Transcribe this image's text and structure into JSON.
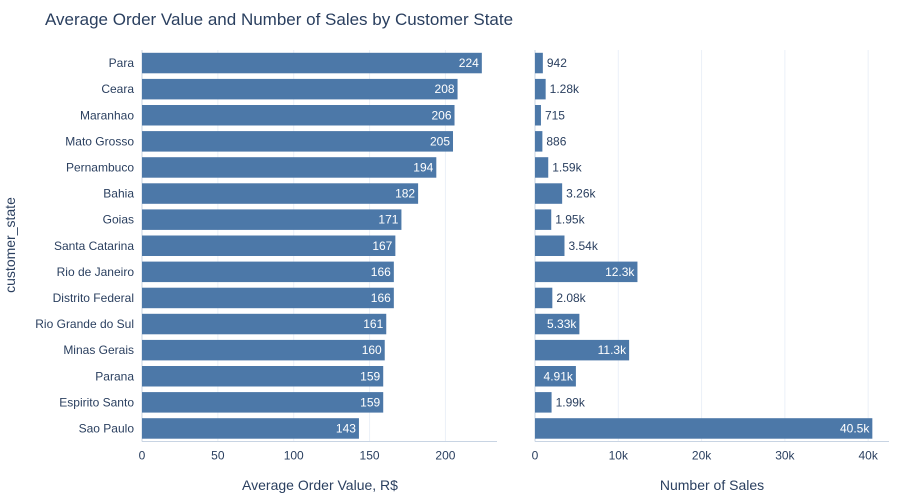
{
  "chart_data": {
    "type": "bar",
    "orientation": "horizontal",
    "title": "Average Order Value and Number of Sales by Customer State",
    "ylabel": "customer_state",
    "bar_color": "#4c78a8",
    "grid_color": "#ebf0f8",
    "axis_line_color": "#c8d4e3",
    "categories": [
      "Para",
      "Ceara",
      "Maranhao",
      "Mato Grosso",
      "Pernambuco",
      "Bahia",
      "Goias",
      "Santa Catarina",
      "Rio de Janeiro",
      "Distrito Federal",
      "Rio Grande do Sul",
      "Minas Gerais",
      "Parana",
      "Espirito Santo",
      "Sao Paulo"
    ],
    "panels": [
      {
        "name": "aov",
        "xlabel": "Average Order Value, R$",
        "xlim": [
          0,
          234
        ],
        "xticks": [
          0,
          50,
          100,
          150,
          200
        ],
        "xtick_labels": [
          "0",
          "50",
          "100",
          "150",
          "200"
        ],
        "values": [
          224,
          208,
          206,
          205,
          194,
          182,
          171,
          167,
          166,
          166,
          161,
          160,
          159,
          159,
          143
        ],
        "labels": [
          "224",
          "208",
          "206",
          "205",
          "194",
          "182",
          "171",
          "167",
          "166",
          "166",
          "161",
          "160",
          "159",
          "159",
          "143"
        ],
        "label_inside": [
          true,
          true,
          true,
          true,
          true,
          true,
          true,
          true,
          true,
          true,
          true,
          true,
          true,
          true,
          true
        ]
      },
      {
        "name": "sales",
        "xlabel": "Number of Sales",
        "xlim": [
          0,
          42500
        ],
        "xticks": [
          0,
          10000,
          20000,
          30000,
          40000
        ],
        "xtick_labels": [
          "0",
          "10k",
          "20k",
          "30k",
          "40k"
        ],
        "values": [
          942,
          1280,
          715,
          886,
          1590,
          3260,
          1950,
          3540,
          12300,
          2080,
          5330,
          11300,
          4910,
          1990,
          40500
        ],
        "labels": [
          "942",
          "1.28k",
          "715",
          "886",
          "1.59k",
          "3.26k",
          "1.95k",
          "3.54k",
          "12.3k",
          "2.08k",
          "5.33k",
          "11.3k",
          "4.91k",
          "1.99k",
          "40.5k"
        ],
        "label_inside": [
          false,
          false,
          false,
          false,
          false,
          false,
          false,
          false,
          true,
          false,
          true,
          true,
          true,
          false,
          true
        ]
      }
    ]
  }
}
